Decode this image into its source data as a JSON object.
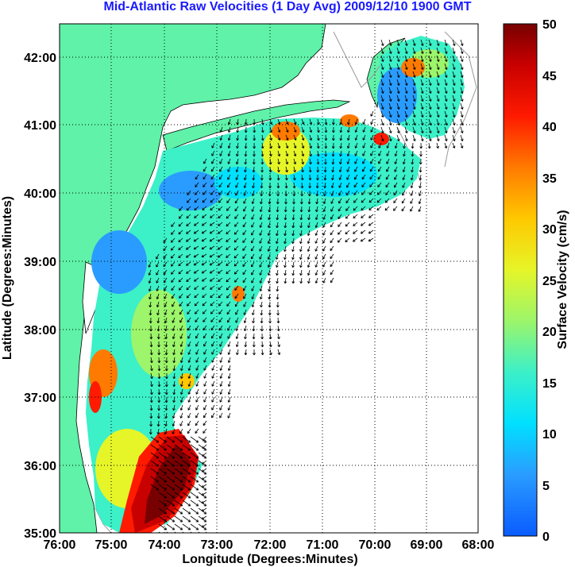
{
  "title": "Mid-Atlantic Raw Velocities (1 Day Avg) 2009/12/10 1900 GMT",
  "x_axis": {
    "label": "Longitude (Degrees:Minutes)",
    "ticks": [
      "76:00",
      "75:00",
      "74:00",
      "73:00",
      "72:00",
      "71:00",
      "70:00",
      "69:00",
      "68:00"
    ]
  },
  "y_axis": {
    "label": "Latitude (Degrees:Minutes)",
    "ticks": [
      "35:00",
      "36:00",
      "37:00",
      "38:00",
      "39:00",
      "40:00",
      "41:00",
      "42:00"
    ]
  },
  "colorbar": {
    "label": "Surface Velocity (cm/s)",
    "ticks": [
      "0",
      "5",
      "10",
      "15",
      "20",
      "25",
      "30",
      "35",
      "40",
      "45",
      "50"
    ],
    "min": 0,
    "max": 50,
    "colormap": "jet"
  },
  "colors": {
    "land": "#5ff2a8",
    "title": "#1a1aff",
    "coastline": "#000000",
    "bathymetry": "#9a9a9a",
    "vectors": "#000000"
  }
}
